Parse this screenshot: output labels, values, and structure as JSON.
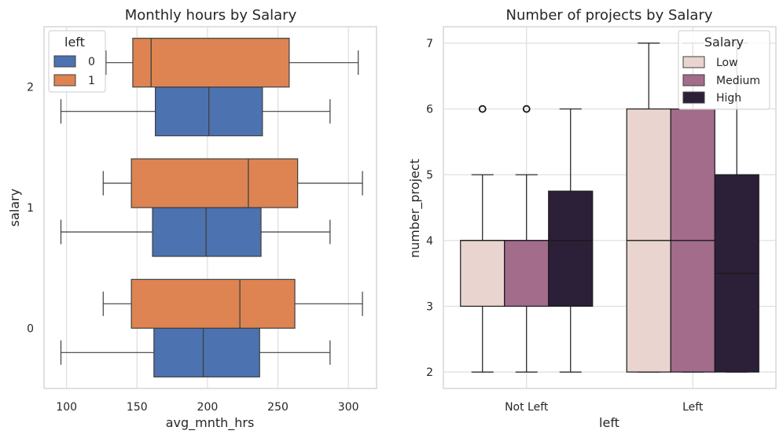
{
  "chart_data": [
    {
      "type": "boxplot",
      "orientation": "horizontal",
      "title": "Monthly hours by Salary",
      "xlabel": "avg_mnth_hrs",
      "ylabel": "salary",
      "xlim": [
        84,
        320
      ],
      "xticks": [
        100,
        150,
        200,
        250,
        300
      ],
      "categories": [
        "2",
        "1",
        "0"
      ],
      "grid": true,
      "legend": {
        "title": "left",
        "placement": "top-left",
        "entries": [
          "0",
          "1"
        ]
      },
      "series": [
        {
          "name": "0",
          "color": "#4c72b0",
          "boxes": [
            {
              "category": "2",
              "whislo": 96,
              "q1": 163,
              "median": 201,
              "q3": 239,
              "whishi": 287
            },
            {
              "category": "1",
              "whislo": 96,
              "q1": 161,
              "median": 199,
              "q3": 238,
              "whishi": 287
            },
            {
              "category": "0",
              "whislo": 96,
              "q1": 162,
              "median": 197,
              "q3": 237,
              "whishi": 287
            }
          ]
        },
        {
          "name": "1",
          "color": "#dd8452",
          "boxes": [
            {
              "category": "2",
              "whislo": 128,
              "q1": 147,
              "median": 160,
              "q3": 258,
              "whishi": 307
            },
            {
              "category": "1",
              "whislo": 126,
              "q1": 146,
              "median": 229,
              "q3": 264,
              "whishi": 310
            },
            {
              "category": "0",
              "whislo": 126,
              "q1": 146,
              "median": 223,
              "q3": 262,
              "whishi": 310
            }
          ]
        }
      ]
    },
    {
      "type": "boxplot",
      "orientation": "vertical",
      "title": "Number of projects by Salary",
      "xlabel": "left",
      "ylabel": "number_project",
      "ylim": [
        1.75,
        7.25
      ],
      "yticks": [
        2,
        3,
        4,
        5,
        6,
        7
      ],
      "categories": [
        "Not Left",
        "Left"
      ],
      "grid": true,
      "legend": {
        "title": "Salary",
        "placement": "top-right",
        "entries": [
          "Low",
          "Medium",
          "High"
        ]
      },
      "series": [
        {
          "name": "Low",
          "color": "#ead4d0",
          "boxes": [
            {
              "category": "Not Left",
              "whislo": 2,
              "q1": 3,
              "median": 4,
              "q3": 4,
              "whishi": 5,
              "fliers": [
                6
              ]
            },
            {
              "category": "Left",
              "whislo": 2,
              "q1": 2,
              "median": 4,
              "q3": 6,
              "whishi": 7,
              "fliers": []
            }
          ]
        },
        {
          "name": "Medium",
          "color": "#a26c8a",
          "boxes": [
            {
              "category": "Not Left",
              "whislo": 2,
              "q1": 3,
              "median": 4,
              "q3": 4,
              "whishi": 5,
              "fliers": [
                6
              ]
            },
            {
              "category": "Left",
              "whislo": 2,
              "q1": 2,
              "median": 4,
              "q3": 6,
              "whishi": 7,
              "fliers": []
            }
          ]
        },
        {
          "name": "High",
          "color": "#2c1f38",
          "boxes": [
            {
              "category": "Not Left",
              "whislo": 2,
              "q1": 3,
              "median": 4,
              "q3": 4.75,
              "whishi": 6,
              "fliers": []
            },
            {
              "category": "Left",
              "whislo": 2,
              "q1": 2,
              "median": 3.5,
              "q3": 5,
              "whishi": 7,
              "fliers": []
            }
          ]
        }
      ]
    }
  ]
}
